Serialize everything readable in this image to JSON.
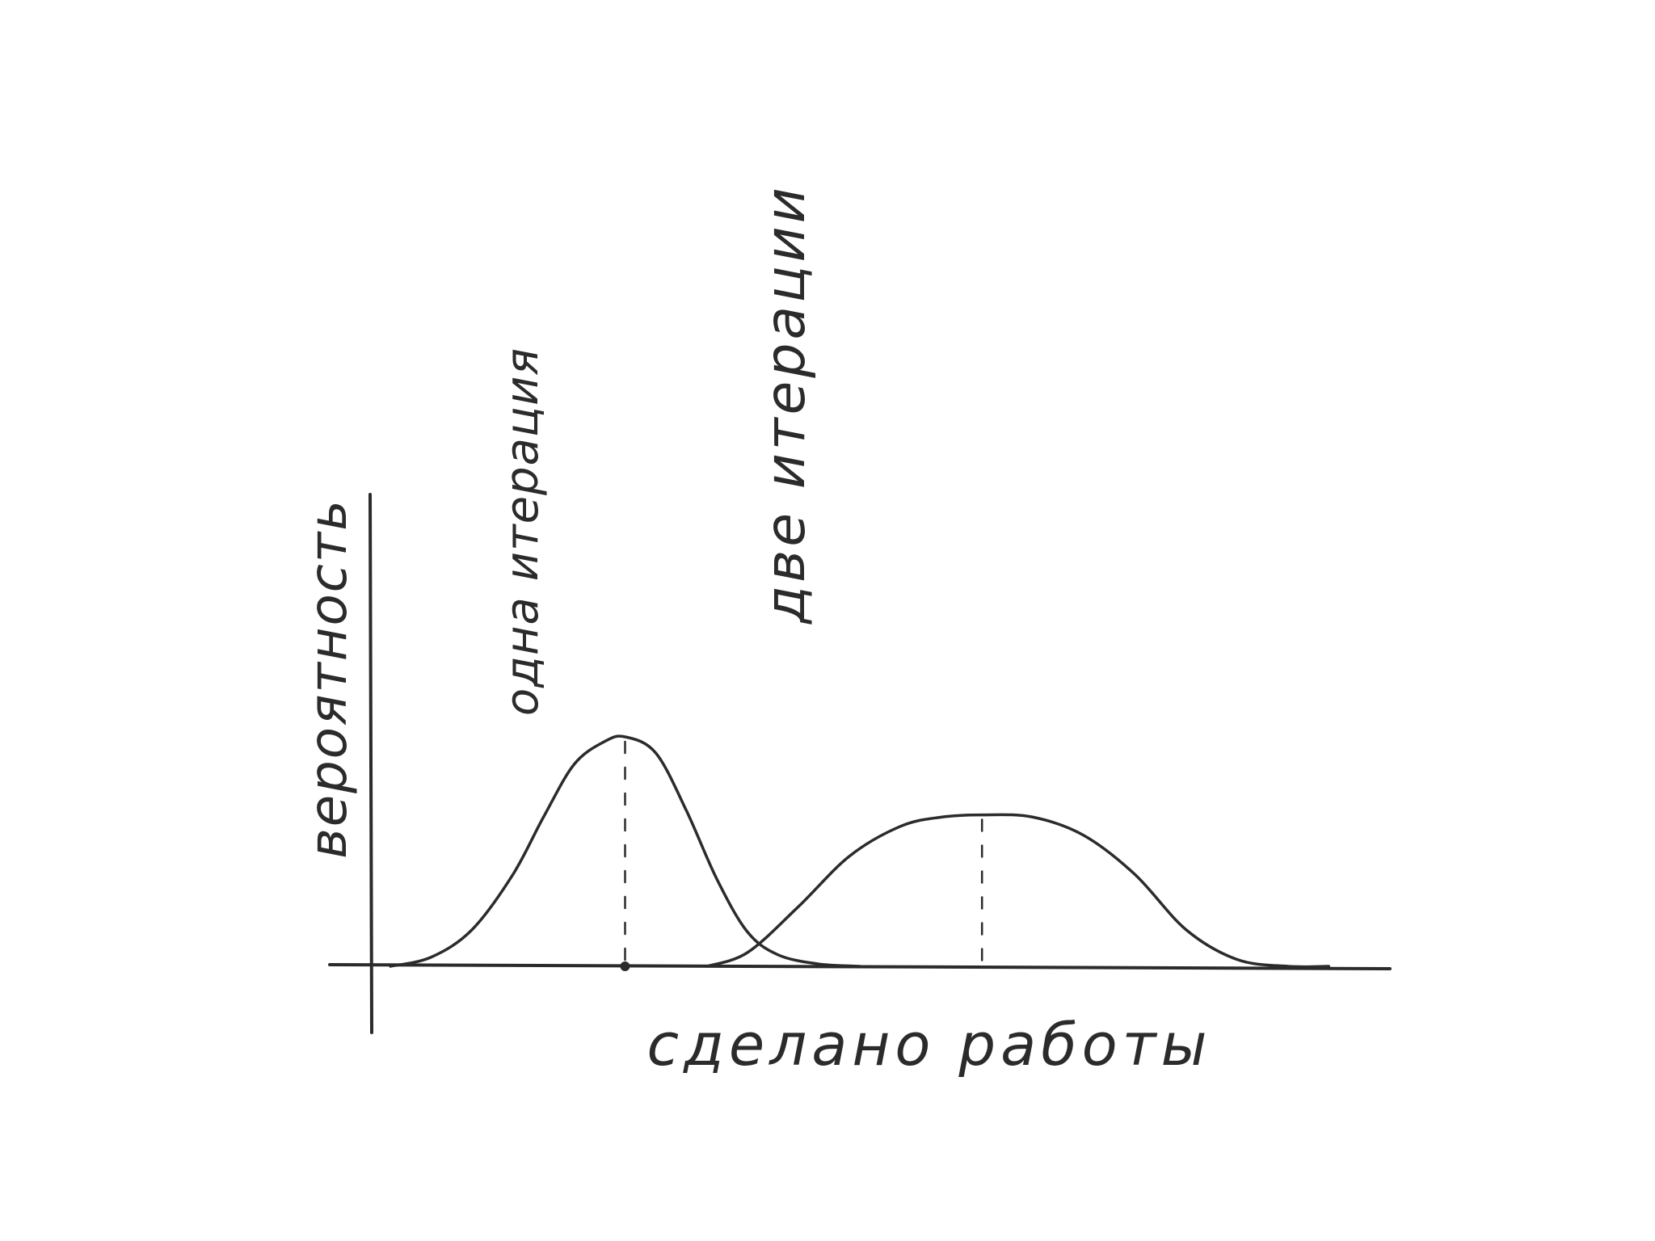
{
  "chart_data": {
    "type": "line",
    "title": "",
    "xlabel": "сделано работы",
    "ylabel": "вероятность",
    "grid": false,
    "legend": "none",
    "series": [
      {
        "name": "одна итерация",
        "peak_x": 0.25,
        "peak_y": 1.0,
        "x": [
          0.02,
          0.06,
          0.1,
          0.14,
          0.17,
          0.2,
          0.23,
          0.25,
          0.28,
          0.31,
          0.34,
          0.37,
          0.4,
          0.44,
          0.48
        ],
        "values": [
          0.0,
          0.04,
          0.16,
          0.4,
          0.65,
          0.88,
          0.98,
          1.0,
          0.93,
          0.68,
          0.38,
          0.15,
          0.05,
          0.01,
          0.0
        ]
      },
      {
        "name": "две итерации",
        "peak_x": 0.6,
        "peak_y": 0.66,
        "x": [
          0.33,
          0.37,
          0.42,
          0.47,
          0.52,
          0.56,
          0.6,
          0.65,
          0.7,
          0.75,
          0.8,
          0.85,
          0.9,
          0.94
        ],
        "values": [
          0.0,
          0.06,
          0.26,
          0.48,
          0.61,
          0.65,
          0.66,
          0.65,
          0.57,
          0.4,
          0.16,
          0.03,
          0.0,
          0.0
        ]
      }
    ],
    "colors": {
      "ink": "#2b2b2b",
      "background": "#ffffff"
    }
  }
}
